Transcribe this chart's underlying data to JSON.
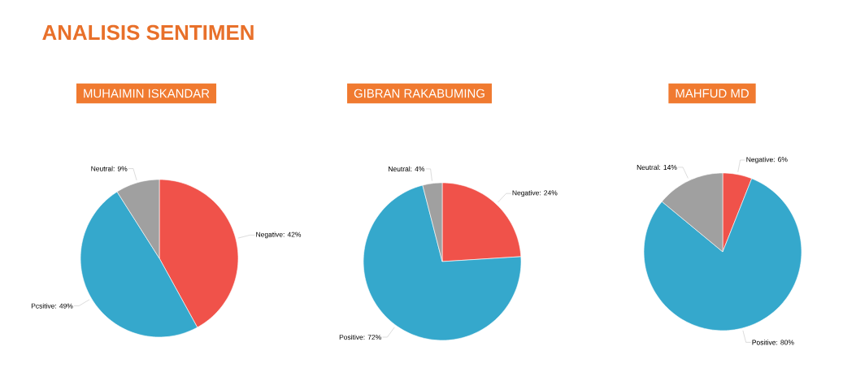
{
  "chart_data": [
    {
      "type": "pie",
      "title": "ANALISIS SENTIMEN",
      "subtitle": "MUHAIMIN ISKANDAR",
      "categories": [
        "Negative: 42%",
        "Pcsitive: 49%",
        "Neutral: 9%"
      ],
      "values": [
        42,
        49,
        9
      ],
      "colors": [
        "#f0524a",
        "#35a8cc",
        "#a0a0a0"
      ]
    },
    {
      "type": "pie",
      "subtitle": "GIBRAN RAKABUMING",
      "categories": [
        "Negative: 24%",
        "Positive: 72%",
        "Neutral: 4%"
      ],
      "values": [
        24,
        72,
        4
      ],
      "colors": [
        "#f0524a",
        "#35a8cc",
        "#a0a0a0"
      ]
    },
    {
      "type": "pie",
      "subtitle": "MAHFUD MD",
      "categories": [
        "Negative: 6%",
        "Positive: 80%",
        "Neutral: 14%"
      ],
      "values": [
        6,
        80,
        14
      ],
      "colors": [
        "#f0524a",
        "#35a8cc",
        "#a0a0a0"
      ]
    }
  ]
}
